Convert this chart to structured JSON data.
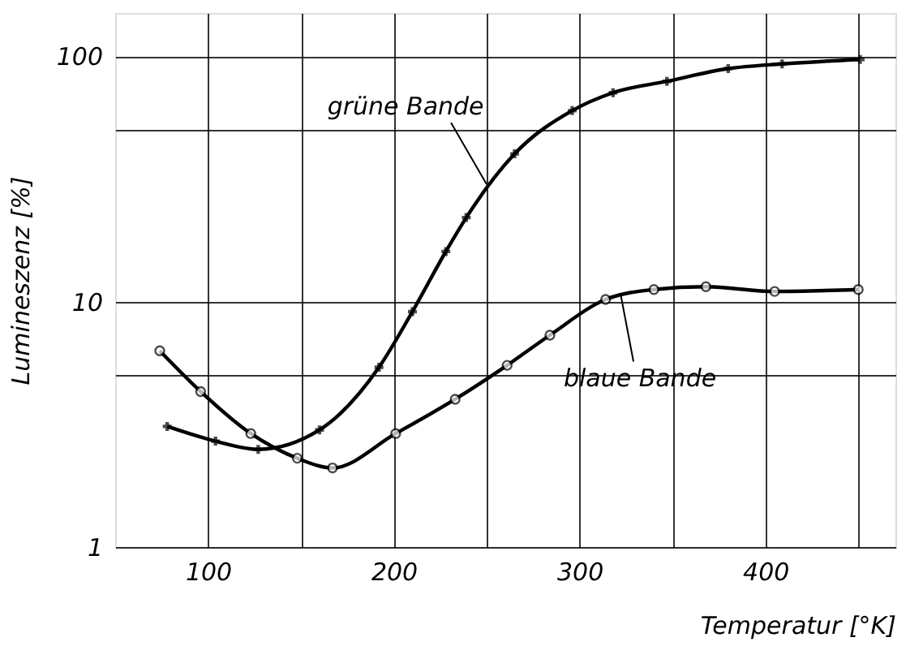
{
  "chart_data": {
    "type": "line",
    "xlabel": "Temperatur  [°K]",
    "ylabel": "Lumineszenz  [%]",
    "log": "y",
    "grid": true,
    "line_style": "solid",
    "xlim": [
      50,
      470
    ],
    "ylim": [
      1,
      150
    ],
    "xticks": [
      100,
      {
        "value": 150,
        "label": null
      },
      200,
      {
        "value": 250,
        "label": null
      },
      300,
      {
        "value": 350,
        "label": null
      },
      400,
      {
        "value": 450,
        "label": null
      }
    ],
    "yticks": [
      1,
      {
        "value": 5,
        "label": null
      },
      10,
      {
        "value": 50,
        "label": null
      },
      100
    ],
    "series": [
      {
        "color": "#000000",
        "marker": "cross",
        "x": [
          78,
          104,
          127,
          160,
          192,
          210,
          228,
          239,
          265,
          296,
          318,
          347,
          380,
          409,
          451
        ],
        "values": [
          3.1,
          2.7,
          2.5,
          3.0,
          5.4,
          9.1,
          16,
          22,
          40,
          60,
          71,
          79,
          89,
          93,
          97
        ]
      },
      {
        "color": "#000000",
        "marker": "circle",
        "x": [
          74,
          96,
          123,
          148,
          167,
          201,
          233,
          261,
          284,
          314,
          340,
          368,
          405,
          450
        ],
        "values": [
          6.3,
          4.3,
          2.9,
          2.3,
          2.1,
          2.9,
          4.0,
          5.5,
          7.3,
          10.2,
          11.2,
          11.5,
          11.0,
          11.2
        ]
      }
    ],
    "annotations": [
      {
        "text": "grüne Bande",
        "x": 250,
        "y": 30
      },
      {
        "text": "blaue Bande",
        "x": 322,
        "y": 10.8
      }
    ]
  }
}
